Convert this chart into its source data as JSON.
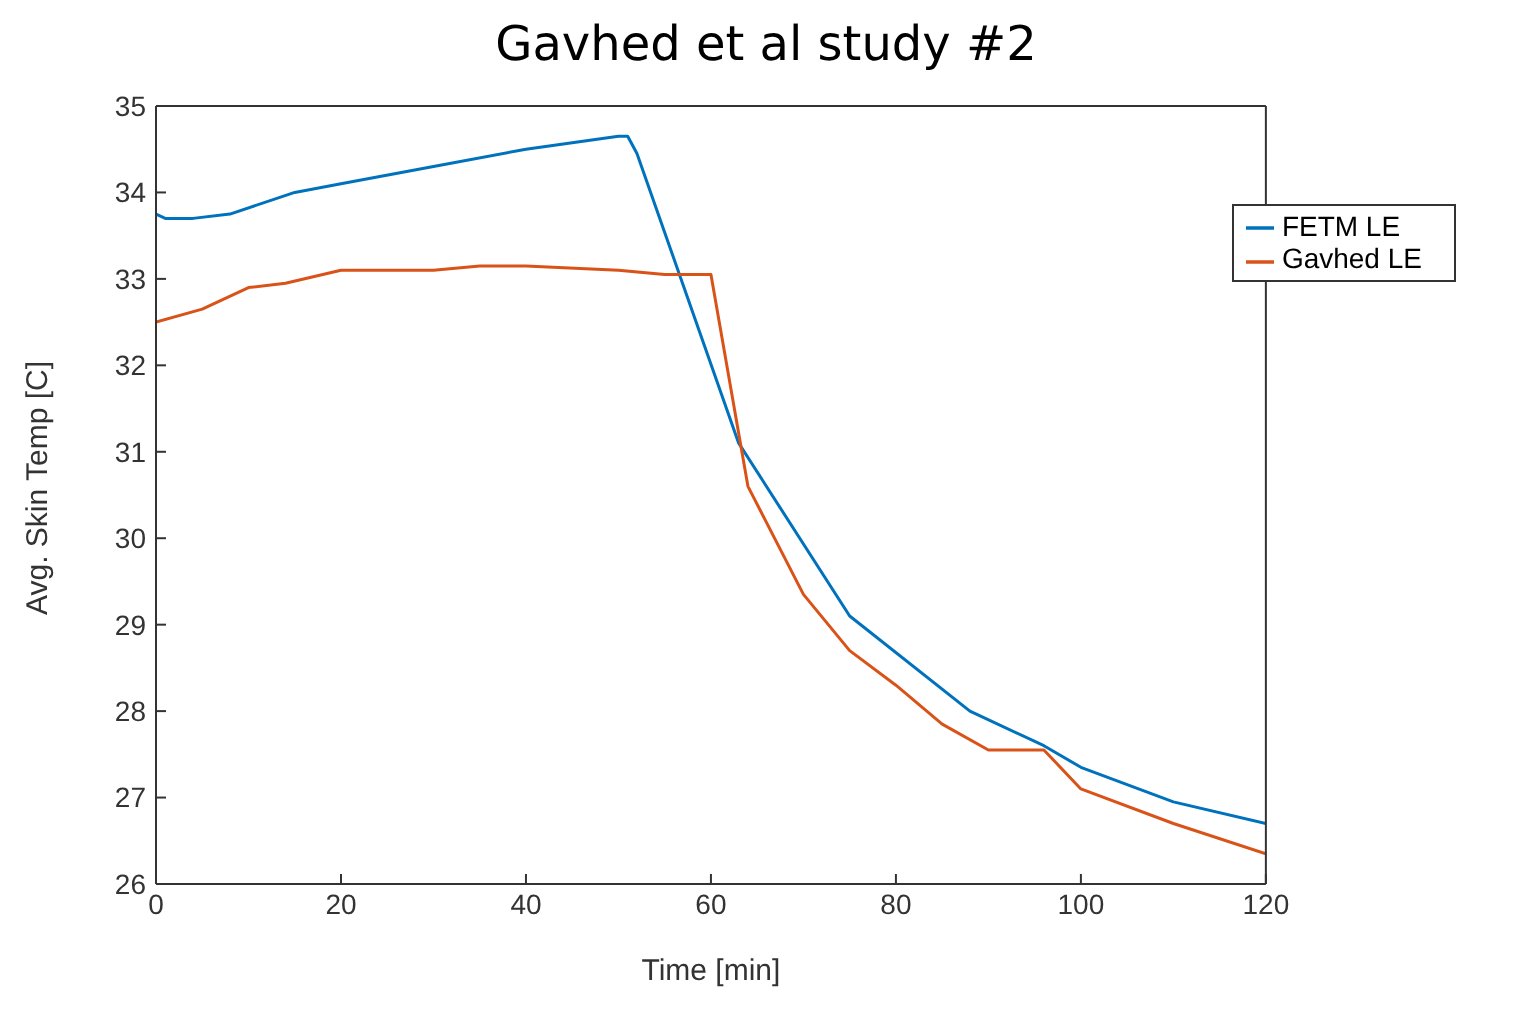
{
  "chart_data": {
    "type": "line",
    "title": "Gavhed et al study #2",
    "xlabel": "Time [min]",
    "ylabel": "Avg. Skin Temp [C]",
    "xlim": [
      0,
      120
    ],
    "xticks": [
      0,
      20,
      40,
      60,
      80,
      100,
      120
    ],
    "ylim": [
      26,
      35
    ],
    "yticks": [
      26,
      27,
      28,
      29,
      30,
      31,
      32,
      33,
      34,
      35
    ],
    "grid": false,
    "legend": "top right",
    "marker": "none",
    "line_style": "solid",
    "series": [
      {
        "name": "FETM LE",
        "color": "#0072bd",
        "x": [
          0,
          1,
          4,
          8,
          15,
          20,
          30,
          40,
          50,
          51,
          52,
          63,
          75,
          88,
          96,
          100,
          110,
          120
        ],
        "values": [
          33.75,
          33.7,
          33.7,
          33.75,
          34.0,
          34.1,
          34.3,
          34.5,
          34.65,
          34.65,
          34.45,
          31.1,
          29.1,
          28.0,
          27.6,
          27.35,
          26.95,
          26.7
        ]
      },
      {
        "name": "Gavhed LE",
        "color": "#d95319",
        "x": [
          0,
          5,
          10,
          14,
          20,
          30,
          35,
          40,
          50,
          55,
          60,
          64,
          70,
          75,
          80,
          85,
          90,
          96,
          100,
          110,
          120
        ],
        "values": [
          32.5,
          32.65,
          32.9,
          32.95,
          33.1,
          33.1,
          33.15,
          33.15,
          33.1,
          33.05,
          33.05,
          30.6,
          29.35,
          28.7,
          28.3,
          27.85,
          27.55,
          27.55,
          27.1,
          26.7,
          26.35
        ]
      }
    ]
  }
}
